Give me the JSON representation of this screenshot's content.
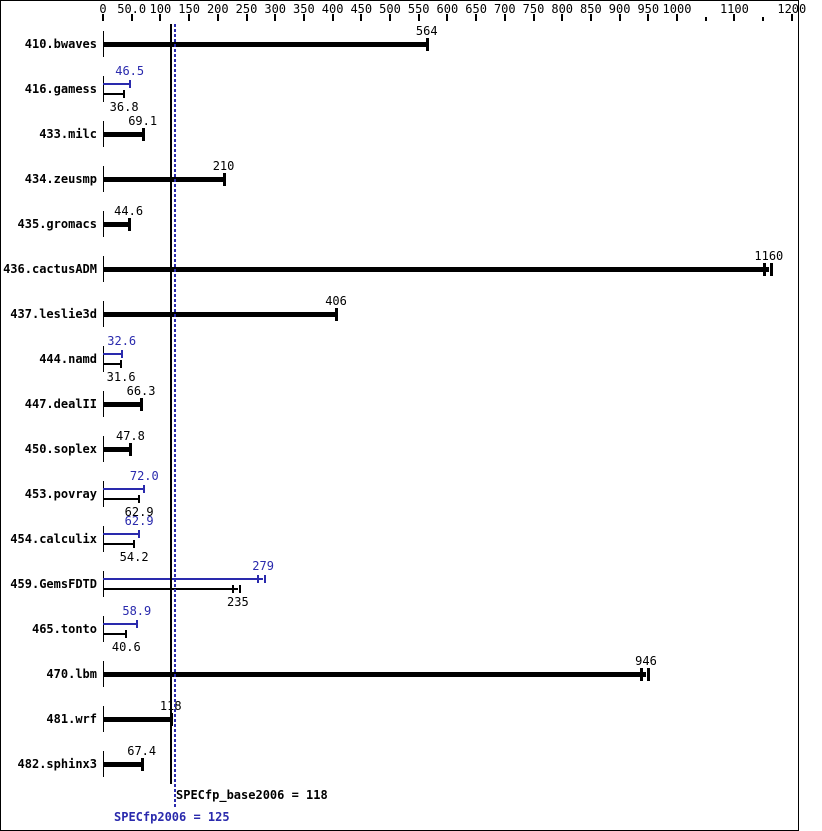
{
  "colors": {
    "base_black": "#000000",
    "peak_blue": "#2a2aad",
    "background": "#ffffff"
  },
  "chart_data": {
    "type": "bar",
    "orientation": "horizontal",
    "title": "",
    "xlabel": "",
    "ylabel": "",
    "xlim": [
      0,
      1200
    ],
    "grid": false,
    "axis": {
      "ticks": [
        {
          "v": 0,
          "label": "0"
        },
        {
          "v": 50,
          "label": "50.0"
        },
        {
          "v": 100,
          "label": "100"
        },
        {
          "v": 150,
          "label": "150"
        },
        {
          "v": 200,
          "label": "200"
        },
        {
          "v": 250,
          "label": "250"
        },
        {
          "v": 300,
          "label": "300"
        },
        {
          "v": 350,
          "label": "350"
        },
        {
          "v": 400,
          "label": "400"
        },
        {
          "v": 450,
          "label": "450"
        },
        {
          "v": 500,
          "label": "500"
        },
        {
          "v": 550,
          "label": "550"
        },
        {
          "v": 600,
          "label": "600"
        },
        {
          "v": 650,
          "label": "650"
        },
        {
          "v": 700,
          "label": "700"
        },
        {
          "v": 750,
          "label": "750"
        },
        {
          "v": 800,
          "label": "800"
        },
        {
          "v": 850,
          "label": "850"
        },
        {
          "v": 900,
          "label": "900"
        },
        {
          "v": 950,
          "label": "950"
        },
        {
          "v": 1000,
          "label": "1000"
        },
        {
          "v": 1050,
          "label": null,
          "minor": true
        },
        {
          "v": 1100,
          "label": "1100"
        },
        {
          "v": 1150,
          "label": null,
          "minor": true
        },
        {
          "v": 1200,
          "label": "1200"
        }
      ]
    },
    "series": [
      {
        "name": "peak",
        "color": "#2a2aad"
      },
      {
        "name": "base",
        "color": "#000000"
      }
    ],
    "benchmarks": [
      {
        "name": "410.bwaves",
        "base": 564,
        "base_label": "564"
      },
      {
        "name": "416.gamess",
        "base": 36.8,
        "base_label": "36.8",
        "peak": 46.5,
        "peak_label": "46.5"
      },
      {
        "name": "433.milc",
        "base": 69.1,
        "base_label": "69.1"
      },
      {
        "name": "434.zeusmp",
        "base": 210,
        "base_label": "210"
      },
      {
        "name": "435.gromacs",
        "base": 44.6,
        "base_label": "44.6"
      },
      {
        "name": "436.cactusADM",
        "base": 1160,
        "base_label": "1160",
        "double_cap": true
      },
      {
        "name": "437.leslie3d",
        "base": 406,
        "base_label": "406"
      },
      {
        "name": "444.namd",
        "base": 31.6,
        "base_label": "31.6",
        "peak": 32.6,
        "peak_label": "32.6"
      },
      {
        "name": "447.dealII",
        "base": 66.3,
        "base_label": "66.3"
      },
      {
        "name": "450.soplex",
        "base": 47.8,
        "base_label": "47.8"
      },
      {
        "name": "453.povray",
        "base": 62.9,
        "base_label": "62.9",
        "peak": 72.0,
        "peak_label": "72.0"
      },
      {
        "name": "454.calculix",
        "base": 54.2,
        "base_label": "54.2",
        "peak": 62.9,
        "peak_label": "62.9"
      },
      {
        "name": "459.GemsFDTD",
        "base": 235,
        "base_label": "235",
        "peak": 279,
        "peak_label": "279",
        "double_cap": true
      },
      {
        "name": "465.tonto",
        "base": 40.6,
        "base_label": "40.6",
        "peak": 58.9,
        "peak_label": "58.9"
      },
      {
        "name": "470.lbm",
        "base": 946,
        "base_label": "946",
        "double_cap": true
      },
      {
        "name": "481.wrf",
        "base": 118,
        "base_label": "118"
      },
      {
        "name": "482.sphinx3",
        "base": 67.4,
        "base_label": "67.4"
      }
    ],
    "reference_lines": [
      {
        "name": "base",
        "value": 118,
        "label": "SPECfp_base2006 = 118",
        "color": "#000000",
        "style": "solid"
      },
      {
        "name": "peak",
        "value": 125,
        "label": "SPECfp2006 = 125",
        "color": "#2a2aad",
        "style": "dotted"
      }
    ],
    "legend_position": "none"
  }
}
